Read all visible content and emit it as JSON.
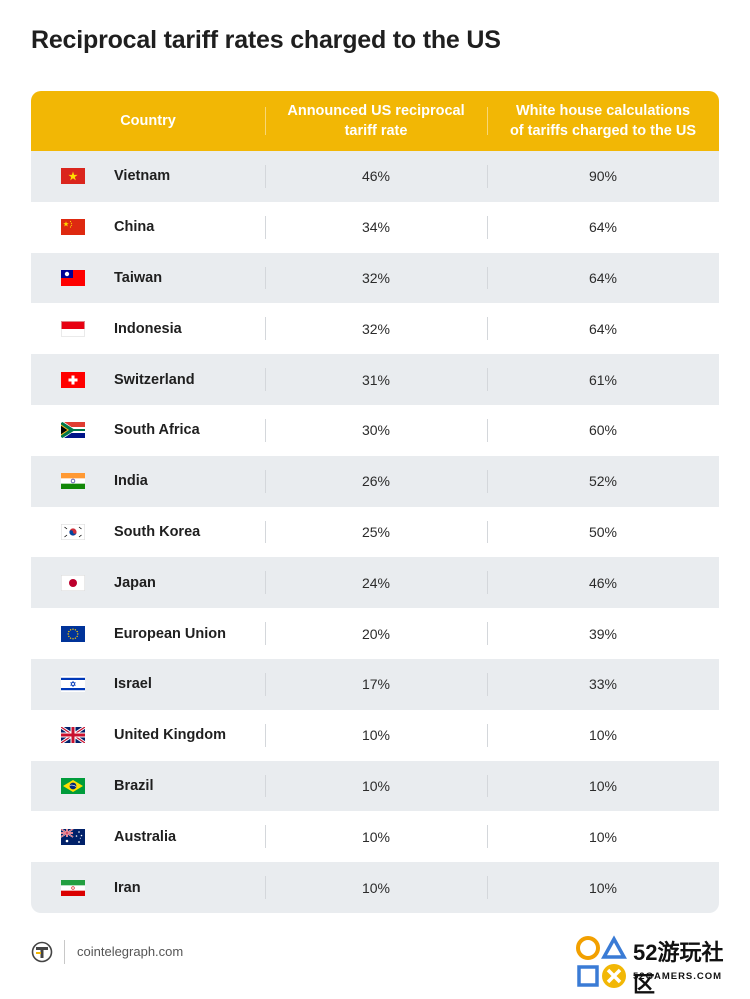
{
  "title": "Reciprocal tariff rates charged to the US",
  "chart_data": {
    "type": "table",
    "columns": [
      "Country",
      "Announced US reciprocal\ntariff rate",
      "White house calculations\nof tariffs charged to the US"
    ],
    "rows": [
      {
        "flag": "vietnam-flag",
        "country": "Vietnam",
        "announced": "46%",
        "calculated": "90%"
      },
      {
        "flag": "china-flag",
        "country": "China",
        "announced": "34%",
        "calculated": "64%"
      },
      {
        "flag": "taiwan-flag",
        "country": "Taiwan",
        "announced": "32%",
        "calculated": "64%"
      },
      {
        "flag": "indonesia-flag",
        "country": "Indonesia",
        "announced": "32%",
        "calculated": "64%"
      },
      {
        "flag": "switzerland-flag",
        "country": "Switzerland",
        "announced": "31%",
        "calculated": "61%"
      },
      {
        "flag": "south-africa-flag",
        "country": "South Africa",
        "announced": "30%",
        "calculated": "60%"
      },
      {
        "flag": "india-flag",
        "country": "India",
        "announced": "26%",
        "calculated": "52%"
      },
      {
        "flag": "south-korea-flag",
        "country": "South Korea",
        "announced": "25%",
        "calculated": "50%"
      },
      {
        "flag": "japan-flag",
        "country": "Japan",
        "announced": "24%",
        "calculated": "46%"
      },
      {
        "flag": "eu-flag",
        "country": "European Union",
        "announced": "20%",
        "calculated": "39%"
      },
      {
        "flag": "israel-flag",
        "country": "Israel",
        "announced": "17%",
        "calculated": "33%"
      },
      {
        "flag": "uk-flag",
        "country": "United Kingdom",
        "announced": "10%",
        "calculated": "10%"
      },
      {
        "flag": "brazil-flag",
        "country": "Brazil",
        "announced": "10%",
        "calculated": "10%"
      },
      {
        "flag": "australia-flag",
        "country": "Australia",
        "announced": "10%",
        "calculated": "10%"
      },
      {
        "flag": "iran-flag",
        "country": "Iran",
        "announced": "10%",
        "calculated": "10%"
      }
    ]
  },
  "colors": {
    "header": "#f2b705",
    "row_alt": "#e9ecef"
  },
  "footer": {
    "source": "cointelegraph.com",
    "logo_icon": "cointelegraph-logo-icon"
  },
  "watermark": {
    "big": "52游玩社区",
    "small": "52GAMERS.COM"
  }
}
